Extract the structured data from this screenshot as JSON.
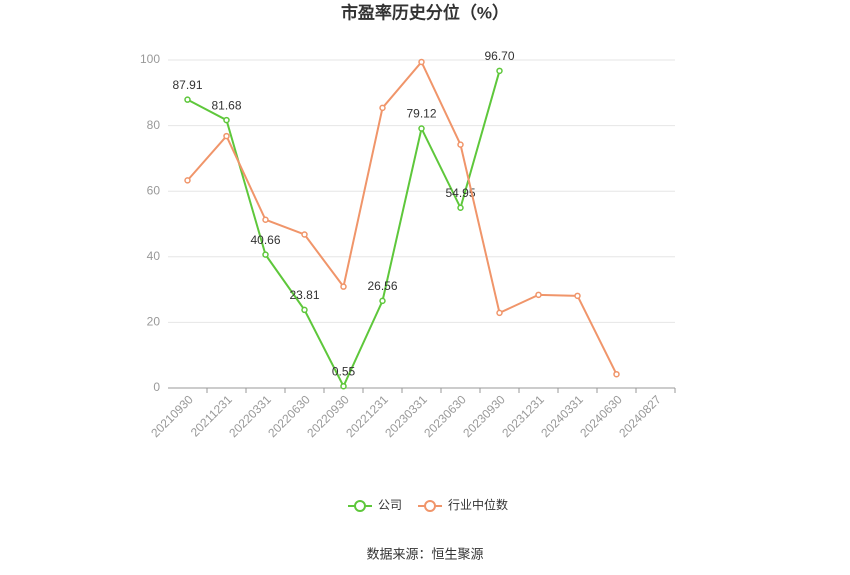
{
  "chart_data": {
    "type": "line",
    "title": "市盈率历史分位（%）",
    "categories": [
      "20210930",
      "20211231",
      "20220331",
      "20220630",
      "20220930",
      "20221231",
      "20230331",
      "20230630",
      "20230930",
      "20231231",
      "20240331",
      "20240630",
      "20240827"
    ],
    "series": [
      {
        "name": "公司",
        "color": "#5ec73b",
        "values": [
          87.91,
          81.68,
          40.66,
          23.81,
          0.55,
          26.56,
          79.12,
          54.95,
          96.7,
          null,
          null,
          null,
          null
        ],
        "value_labels": [
          "87.91",
          "81.68",
          "40.66",
          "23.81",
          "0.55",
          "26.56",
          "79.12",
          "54.95",
          "96.70",
          null,
          null,
          null,
          null
        ]
      },
      {
        "name": "行业中位数",
        "color": "#f0956a",
        "values": [
          63.3,
          76.8,
          51.3,
          46.8,
          30.9,
          85.4,
          99.4,
          74.2,
          22.9,
          28.4,
          28.1,
          4.2,
          null
        ]
      }
    ],
    "ylim": [
      0,
      100
    ],
    "yticks": [
      0,
      20,
      40,
      60,
      80,
      100
    ],
    "grid": true,
    "legend": "bottom",
    "source": "数据来源：恒生聚源"
  }
}
